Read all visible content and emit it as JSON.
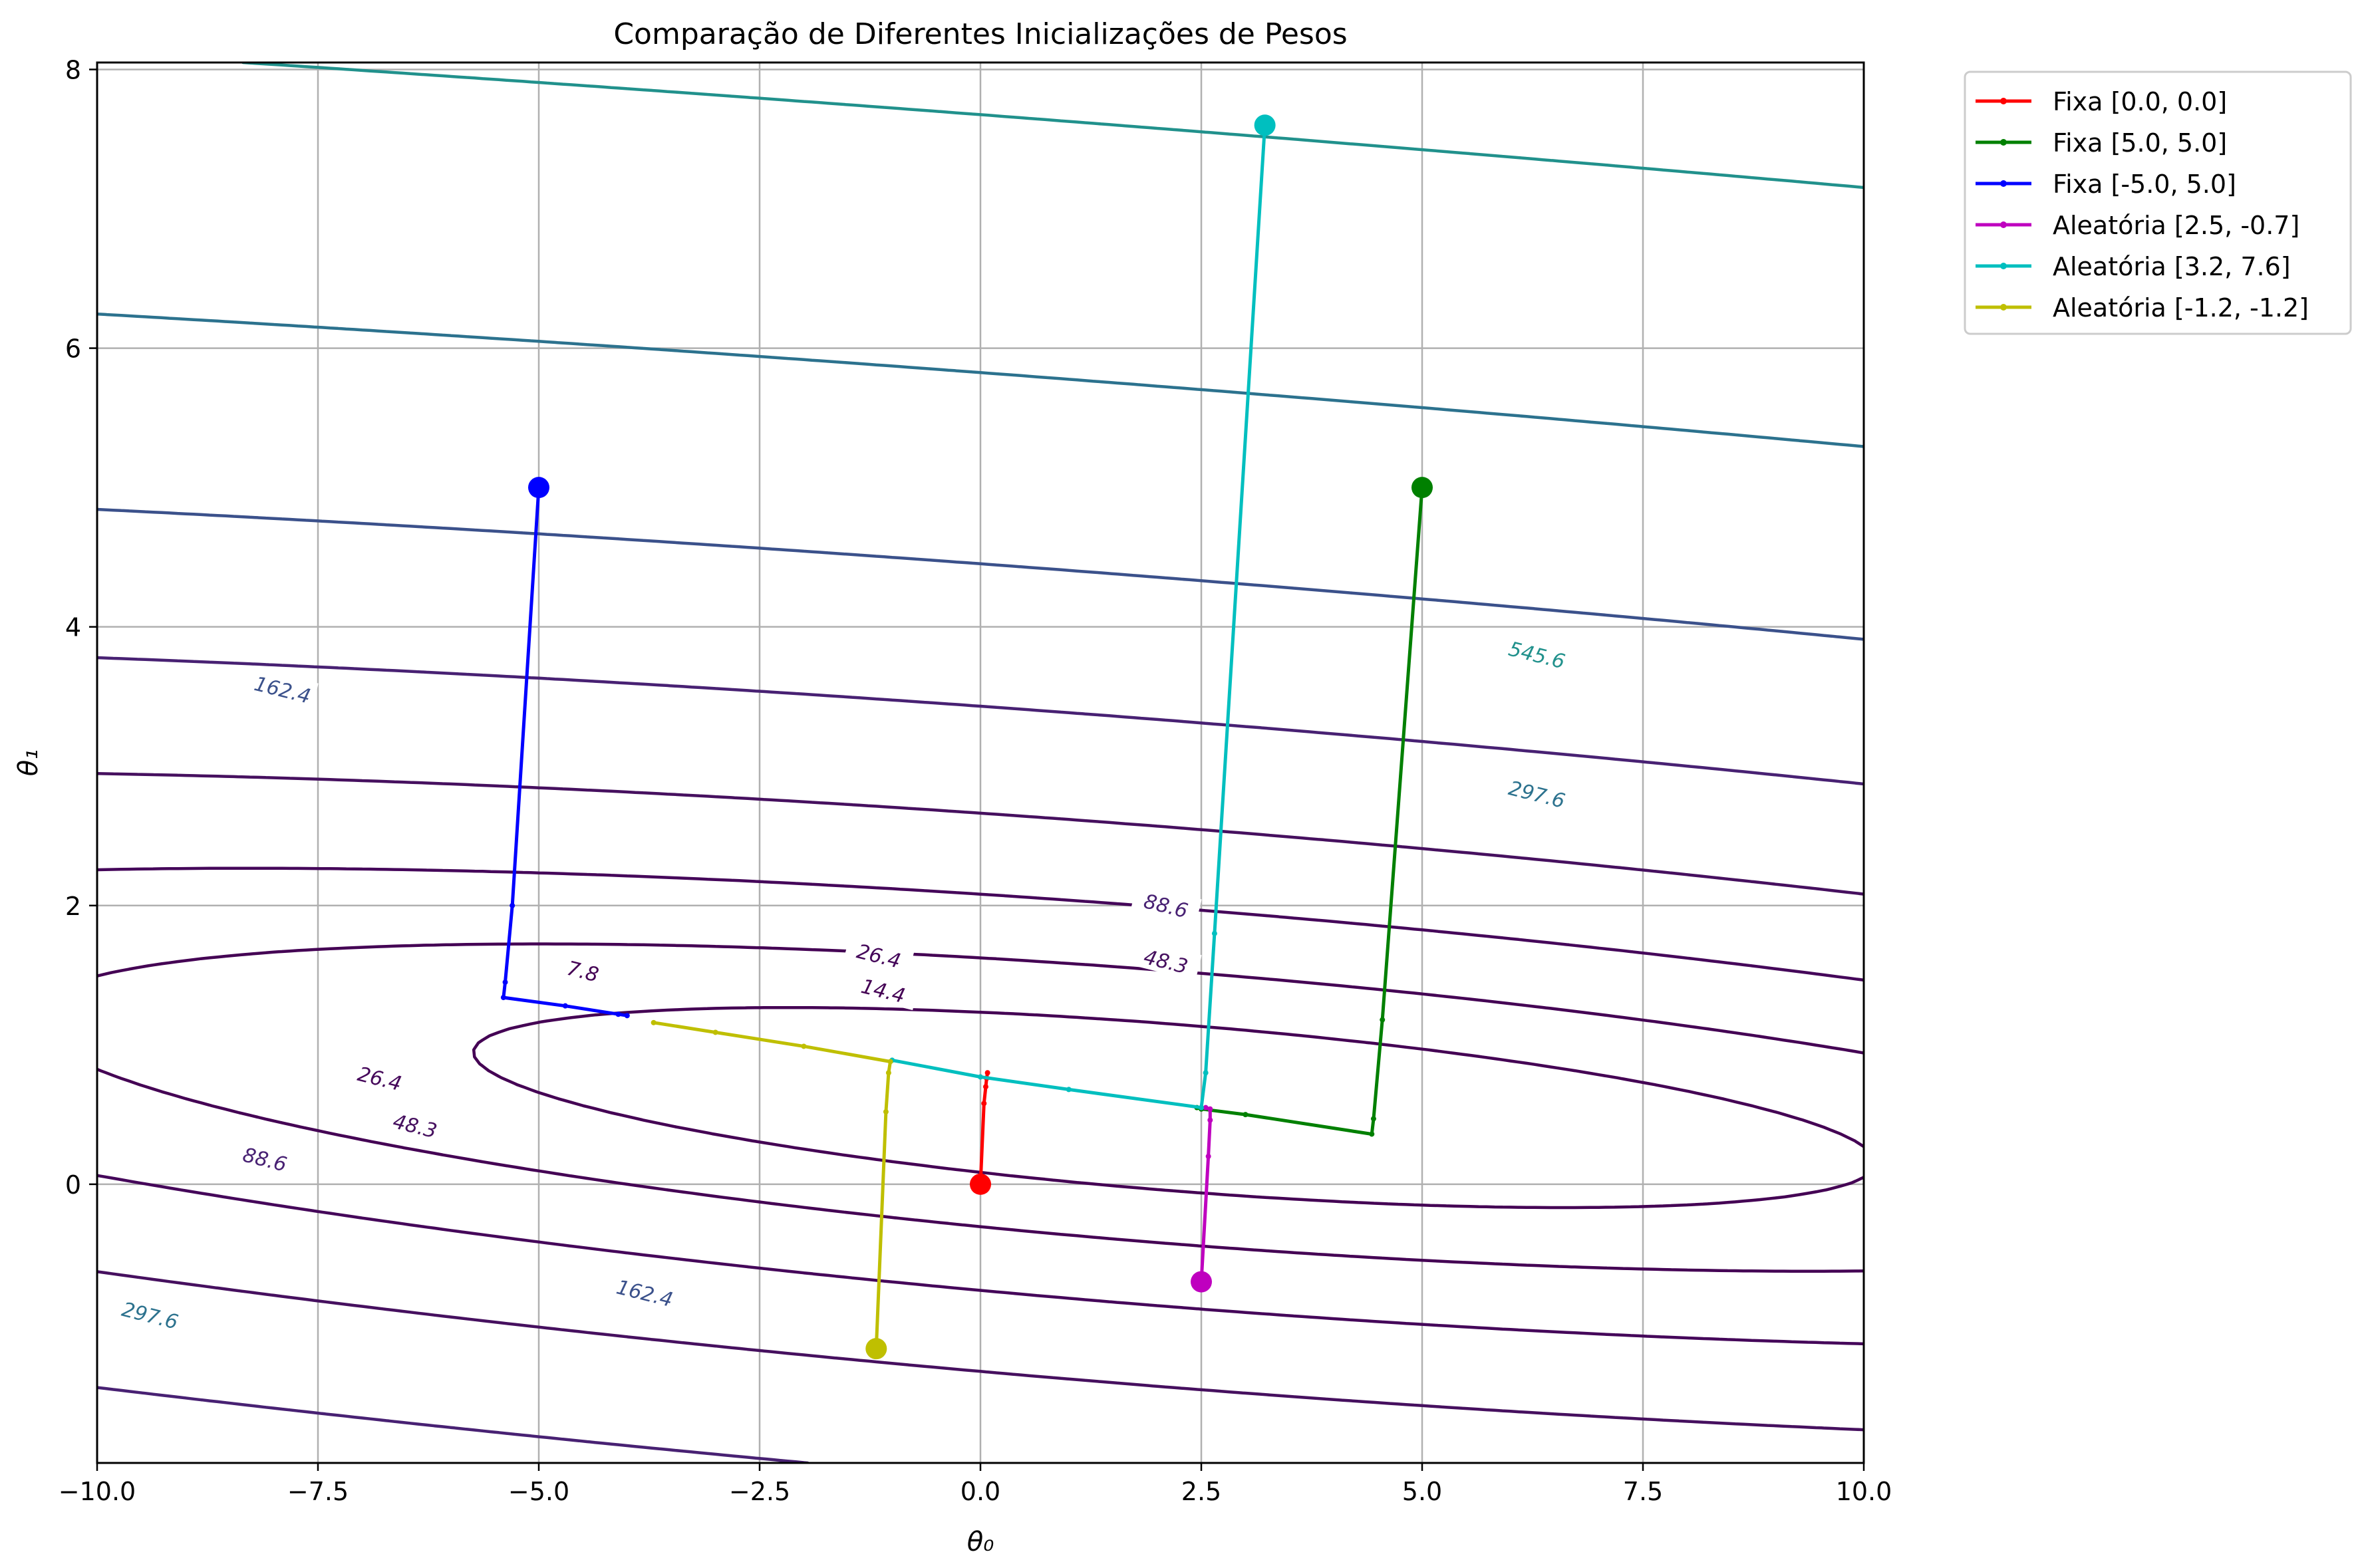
{
  "chart_data": {
    "type": "line",
    "title": "Comparação de Diferentes Inicializações de Pesos",
    "xlabel": "θ₀",
    "ylabel": "θ₁",
    "xlim": [
      -10,
      10
    ],
    "ylim": [
      -2,
      8.05
    ],
    "xticks": [
      -10,
      -7.5,
      -5,
      -2.5,
      0,
      2.5,
      5,
      7.5,
      10
    ],
    "xtick_labels": [
      "−10.0",
      "−7.5",
      "−5.0",
      "−2.5",
      "0.0",
      "2.5",
      "5.0",
      "7.5",
      "10.0"
    ],
    "yticks": [
      0,
      2,
      4,
      6,
      8
    ],
    "ytick_labels": [
      "0",
      "2",
      "4",
      "6",
      "8"
    ],
    "grid": true,
    "legend_position": "outside-top-right",
    "series": [
      {
        "name": "Fixa [0.0, 0.0]",
        "color": "#ff0000",
        "x": [
          0.0,
          0.04,
          0.06,
          0.07,
          0.08
        ],
        "y": [
          0.0,
          0.58,
          0.7,
          0.76,
          0.8
        ]
      },
      {
        "name": "Fixa [5.0, 5.0]",
        "color": "#008000",
        "x": [
          5.0,
          4.55,
          4.45,
          4.43,
          3.0,
          2.5,
          2.45
        ],
        "y": [
          5.0,
          1.18,
          0.47,
          0.36,
          0.5,
          0.54,
          0.55
        ]
      },
      {
        "name": "Fixa [-5.0, 5.0]",
        "color": "#0000ff",
        "x": [
          -5.0,
          -5.3,
          -5.38,
          -5.4,
          -4.7,
          -4.1,
          -4.0
        ],
        "y": [
          5.0,
          2.0,
          1.45,
          1.34,
          1.28,
          1.22,
          1.21
        ]
      },
      {
        "name": "Aleatória [2.5, -0.7]",
        "color": "#bf00bf",
        "x": [
          2.5,
          2.58,
          2.6,
          2.6,
          2.55
        ],
        "y": [
          -0.7,
          0.2,
          0.46,
          0.54,
          0.55
        ]
      },
      {
        "name": "Aleatória [3.2, 7.6]",
        "color": "#00bfbf",
        "x": [
          3.22,
          2.65,
          2.55,
          2.5,
          1.0,
          0.0,
          -1.0
        ],
        "y": [
          7.6,
          1.8,
          0.8,
          0.55,
          0.68,
          0.77,
          0.89
        ]
      },
      {
        "name": "Aleatória [-1.2, -1.2]",
        "color": "#bfbf00",
        "x": [
          -1.18,
          -1.07,
          -1.04,
          -1.02,
          -2.0,
          -3.0,
          -3.7
        ],
        "y": [
          -1.18,
          0.52,
          0.8,
          0.88,
          0.99,
          1.09,
          1.16
        ]
      }
    ],
    "contour_levels": [
      "7.8",
      "14.4",
      "26.4",
      "48.3",
      "88.6",
      "162.4",
      "297.6",
      "545.6"
    ],
    "contour_colors": [
      "#440154",
      "#440154",
      "#45075a",
      "#46105f",
      "#482173",
      "#3b518b",
      "#2c728e",
      "#21918c"
    ],
    "contour_labels": [
      {
        "text": "162.4",
        "x": -7.9,
        "y": 3.55
      },
      {
        "text": "7.8",
        "x": -4.5,
        "y": 1.53
      },
      {
        "text": "26.4",
        "x": -1.15,
        "y": 1.64
      },
      {
        "text": "14.4",
        "x": -1.1,
        "y": 1.39
      },
      {
        "text": "88.6",
        "x": 2.1,
        "y": 2.0
      },
      {
        "text": "48.3",
        "x": 2.1,
        "y": 1.6
      },
      {
        "text": "297.6",
        "x": 6.3,
        "y": 2.8
      },
      {
        "text": "545.6",
        "x": 6.3,
        "y": 3.8
      },
      {
        "text": "26.4",
        "x": -6.8,
        "y": 0.76
      },
      {
        "text": "48.3",
        "x": -6.4,
        "y": 0.42
      },
      {
        "text": "88.6",
        "x": -8.1,
        "y": 0.18
      },
      {
        "text": "162.4",
        "x": -3.8,
        "y": -0.78
      },
      {
        "text": "297.6",
        "x": -9.4,
        "y": -0.94
      }
    ]
  }
}
